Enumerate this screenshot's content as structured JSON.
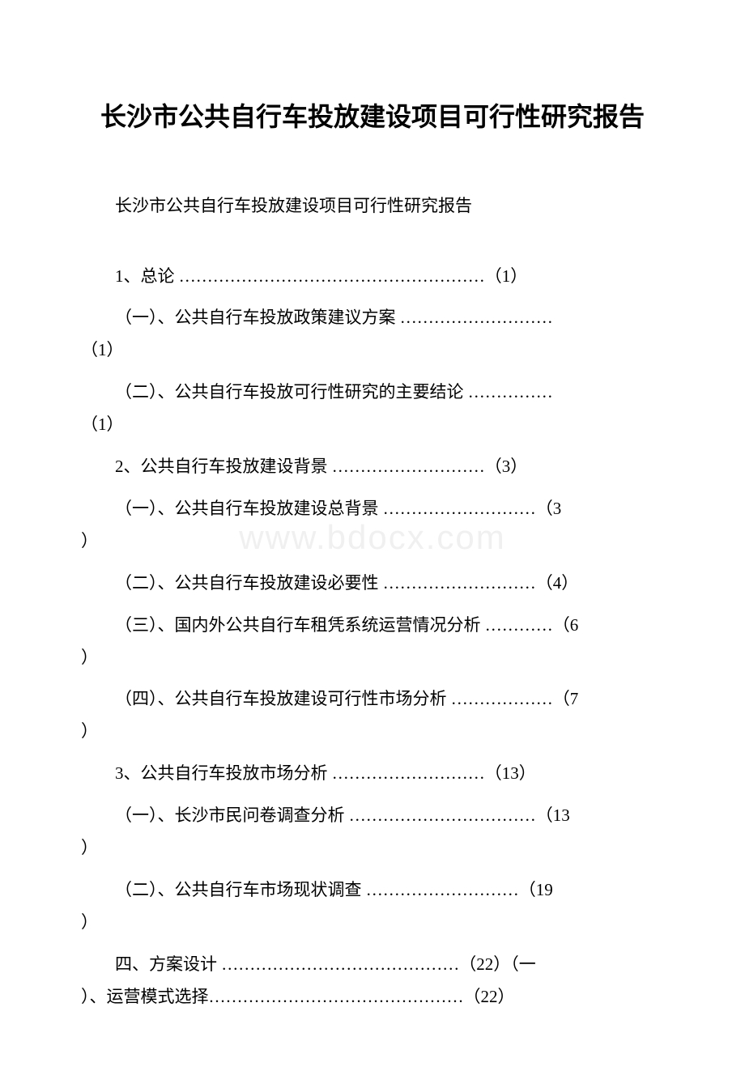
{
  "title": "长沙市公共自行车投放建设项目可行性研究报告",
  "subtitle": "长沙市公共自行车投放建设项目可行性研究报告",
  "watermark": "www.bdocx.com",
  "toc": {
    "line1": "1、总论 ………………………………………………（1）",
    "line2_a": "（一）、公共自行车投放政策建议方案 ………………………",
    "line2_b": "（1）",
    "line3_a": "（二）、公共自行车投放可行性研究的主要结论 ……………",
    "line3_b": "（1）",
    "line4": "2、公共自行车投放建设背景 ………………………（3）",
    "line5_a": "（一）、公共自行车投放建设总背景 ………………………（3",
    "line5_b": "）",
    "line6": "（二）、公共自行车投放建设必要性 ………………………（4）",
    "line7_a": "（三）、国内外公共自行车租凭系统运营情况分析 …………（6",
    "line7_b": "）",
    "line8_a": "（四）、公共自行车投放建设可行性市场分析 ………………（7",
    "line8_b": "）",
    "line9": "3、公共自行车投放市场分析 ………………………（13）",
    "line10_a": "（一）、长沙市民问卷调查分析 ……………………………（13",
    "line10_b": "）",
    "line11_a": "（二）、公共自行车市场现状调查 ………………………（19",
    "line11_b": "）",
    "line12_a": "四、方案设计 ……………………………………（22）（一",
    "line12_b": "）、运营模式选择………………………………………（22）"
  }
}
